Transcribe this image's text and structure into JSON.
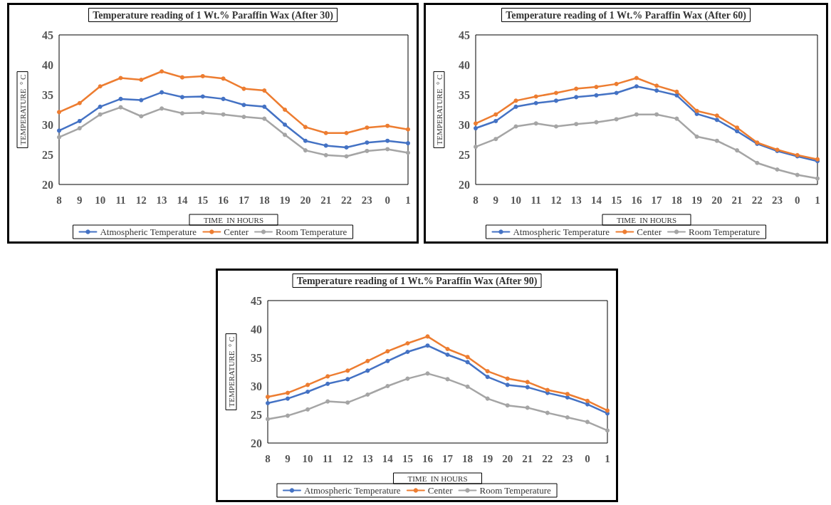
{
  "chart_data": [
    {
      "type": "line",
      "title": "Temperature reading of 1 Wt.% Paraffin Wax (After 30)",
      "xlabel": "TIME  IN HOURS",
      "ylabel": "TEMPERATURE  ° C",
      "categories": [
        "8",
        "9",
        "10",
        "11",
        "12",
        "13",
        "14",
        "15",
        "16",
        "17",
        "18",
        "19",
        "20",
        "21",
        "22",
        "23",
        "0",
        "1"
      ],
      "ylim": [
        20,
        45
      ],
      "yticks": [
        20,
        25,
        30,
        35,
        40,
        45
      ],
      "grid": false,
      "legend": "bottom",
      "marker": "circle",
      "line_style": "solid",
      "series": [
        {
          "name": "Atmospheric Temperature",
          "color": "#4472c4",
          "values": [
            29.0,
            30.6,
            33.0,
            34.3,
            34.1,
            35.4,
            34.6,
            34.7,
            34.3,
            33.3,
            33.0,
            30.0,
            27.3,
            26.5,
            26.2,
            27.0,
            27.3,
            26.9
          ]
        },
        {
          "name": "Center",
          "color": "#ed7d31",
          "values": [
            32.1,
            33.6,
            36.4,
            37.8,
            37.5,
            38.9,
            37.9,
            38.1,
            37.7,
            36.0,
            35.7,
            32.5,
            29.6,
            28.6,
            28.6,
            29.5,
            29.8,
            29.2
          ]
        },
        {
          "name": "Room Temperature",
          "color": "#a5a5a5",
          "values": [
            27.9,
            29.4,
            31.7,
            32.9,
            31.4,
            32.7,
            31.9,
            32.0,
            31.7,
            31.3,
            31.0,
            28.3,
            25.7,
            24.9,
            24.7,
            25.6,
            25.9,
            25.3
          ]
        }
      ]
    },
    {
      "type": "line",
      "title": "Temperature reading of 1 Wt.% Paraffin Wax (After 60)",
      "xlabel": "TIME  IN HOURS",
      "ylabel": "TEMPERATURE  ° C",
      "categories": [
        "8",
        "9",
        "10",
        "11",
        "12",
        "13",
        "14",
        "15",
        "16",
        "17",
        "18",
        "19",
        "20",
        "21",
        "22",
        "23",
        "0",
        "1"
      ],
      "ylim": [
        20,
        45
      ],
      "yticks": [
        20,
        25,
        30,
        35,
        40,
        45
      ],
      "grid": false,
      "legend": "bottom",
      "marker": "circle",
      "line_style": "solid",
      "series": [
        {
          "name": "Atmospheric Temperature",
          "color": "#4472c4",
          "values": [
            29.4,
            30.6,
            33.0,
            33.6,
            34.0,
            34.6,
            34.9,
            35.3,
            36.4,
            35.7,
            34.9,
            31.8,
            30.8,
            28.9,
            26.8,
            25.6,
            24.7,
            23.9
          ]
        },
        {
          "name": "Center",
          "color": "#ed7d31",
          "values": [
            30.2,
            31.7,
            34.0,
            34.7,
            35.3,
            36.0,
            36.3,
            36.8,
            37.8,
            36.5,
            35.5,
            32.3,
            31.5,
            29.5,
            27.0,
            25.8,
            24.9,
            24.2
          ]
        },
        {
          "name": "Room Temperature",
          "color": "#a5a5a5",
          "values": [
            26.3,
            27.6,
            29.7,
            30.2,
            29.7,
            30.1,
            30.4,
            30.9,
            31.7,
            31.7,
            31.0,
            28.0,
            27.3,
            25.7,
            23.6,
            22.5,
            21.6,
            21.0
          ]
        }
      ]
    },
    {
      "type": "line",
      "title": "Temperature reading of 1 Wt.% Paraffin Wax (After 90)",
      "xlabel": "TIME  IN HOURS",
      "ylabel": "TEMPERATURE  ° C",
      "categories": [
        "8",
        "9",
        "10",
        "11",
        "12",
        "13",
        "14",
        "15",
        "16",
        "17",
        "18",
        "19",
        "20",
        "21",
        "22",
        "23",
        "0",
        "1"
      ],
      "ylim": [
        20,
        45
      ],
      "yticks": [
        20,
        25,
        30,
        35,
        40,
        45
      ],
      "grid": false,
      "legend": "bottom",
      "marker": "circle",
      "line_style": "solid",
      "series": [
        {
          "name": "Atmospheric Temperature",
          "color": "#4472c4",
          "values": [
            27.0,
            27.8,
            29.0,
            30.4,
            31.2,
            32.7,
            34.4,
            36.0,
            37.1,
            35.5,
            34.2,
            31.6,
            30.2,
            29.8,
            28.8,
            28.0,
            26.8,
            25.2
          ]
        },
        {
          "name": "Center",
          "color": "#ed7d31",
          "values": [
            28.1,
            28.8,
            30.2,
            31.7,
            32.7,
            34.4,
            36.1,
            37.5,
            38.7,
            36.5,
            35.1,
            32.6,
            31.3,
            30.7,
            29.3,
            28.6,
            27.4,
            25.7
          ]
        },
        {
          "name": "Room Temperature",
          "color": "#a5a5a5",
          "values": [
            24.2,
            24.8,
            25.9,
            27.3,
            27.1,
            28.5,
            30.0,
            31.3,
            32.2,
            31.2,
            29.9,
            27.8,
            26.6,
            26.2,
            25.3,
            24.5,
            23.7,
            22.2
          ]
        }
      ]
    }
  ]
}
